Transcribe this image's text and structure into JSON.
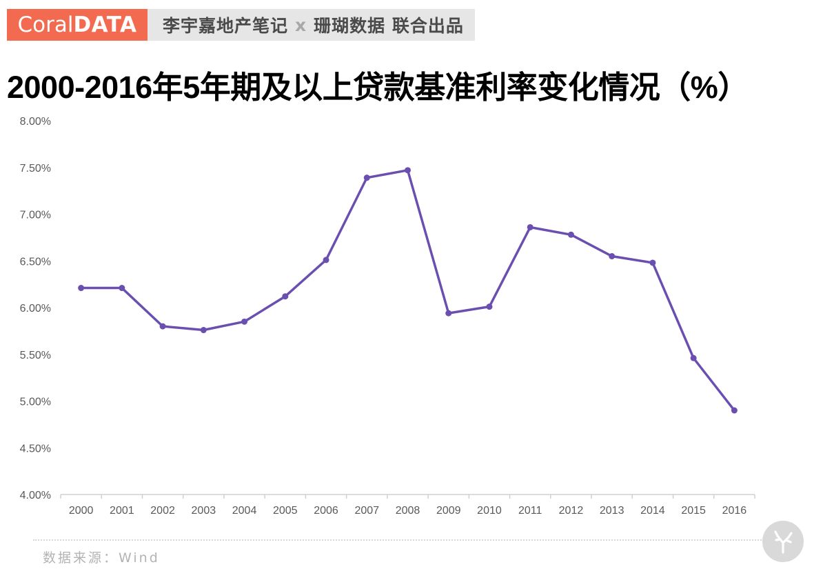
{
  "header": {
    "brand_light": "Coral",
    "brand_bold": "DATA",
    "collab_left": "李宇嘉地产笔记",
    "collab_x": "x",
    "collab_right": "珊瑚数据 联合出品"
  },
  "title": "2000-2016年5年期及以上贷款基准利率变化情况（%）",
  "source": "数据来源：Wind",
  "colors": {
    "line": "#6b4fb0",
    "brand": "#f26b50",
    "axis": "#d0d0d0",
    "tick_text": "#595959"
  },
  "icons": {
    "watermark": "coral-branch-icon"
  },
  "chart_data": {
    "type": "line",
    "categories": [
      "2000",
      "2001",
      "2002",
      "2003",
      "2004",
      "2005",
      "2006",
      "2007",
      "2008",
      "2009",
      "2010",
      "2011",
      "2012",
      "2013",
      "2014",
      "2015",
      "2016"
    ],
    "series": [
      {
        "values": [
          6.21,
          6.21,
          5.8,
          5.76,
          5.85,
          6.12,
          6.51,
          7.39,
          7.47,
          5.94,
          6.01,
          6.86,
          6.78,
          6.55,
          6.48,
          5.46,
          4.9
        ]
      }
    ],
    "ylim": [
      4.0,
      8.0
    ],
    "yticks": [
      "4.00%",
      "4.50%",
      "5.00%",
      "5.50%",
      "6.00%",
      "6.50%",
      "7.00%",
      "7.50%",
      "8.00%"
    ],
    "grid": false,
    "xlabel": "",
    "ylabel": ""
  }
}
